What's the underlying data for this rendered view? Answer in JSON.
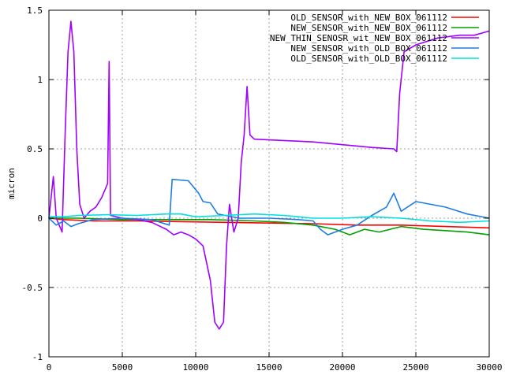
{
  "chart_data": {
    "type": "line",
    "title": "",
    "xlabel": "",
    "ylabel": "micron",
    "xlim": [
      0,
      30000
    ],
    "ylim": [
      -1,
      1.5
    ],
    "grid": true,
    "legend_position": "top-right",
    "x_ticks": [
      "0",
      "5000",
      "10000",
      "15000",
      "20000",
      "25000",
      "30000"
    ],
    "y_ticks": [
      "-1",
      "-0.5",
      "0",
      "0.5",
      "1",
      "1.5"
    ],
    "series": [
      {
        "name": "OLD_SENSOR_with_NEW_BOX_061112",
        "color": "#ff0000",
        "points": [
          [
            0,
            0.0
          ],
          [
            1000,
            -0.01
          ],
          [
            3000,
            -0.02
          ],
          [
            6000,
            -0.02
          ],
          [
            9000,
            -0.025
          ],
          [
            12000,
            -0.03
          ],
          [
            15000,
            -0.035
          ],
          [
            18000,
            -0.04
          ],
          [
            21000,
            -0.05
          ],
          [
            24000,
            -0.05
          ],
          [
            27000,
            -0.06
          ],
          [
            30000,
            -0.07
          ]
        ]
      },
      {
        "name": "NEW_SENSOR_with_NEW_BOX_061112",
        "color": "#00a000",
        "points": [
          [
            0,
            0.0
          ],
          [
            2000,
            0.0
          ],
          [
            5000,
            -0.01
          ],
          [
            8000,
            -0.01
          ],
          [
            11000,
            -0.01
          ],
          [
            14000,
            -0.02
          ],
          [
            16000,
            -0.03
          ],
          [
            18000,
            -0.05
          ],
          [
            19500,
            -0.08
          ],
          [
            20500,
            -0.12
          ],
          [
            21500,
            -0.08
          ],
          [
            22500,
            -0.1
          ],
          [
            24000,
            -0.06
          ],
          [
            25500,
            -0.08
          ],
          [
            27000,
            -0.09
          ],
          [
            28500,
            -0.1
          ],
          [
            30000,
            -0.12
          ]
        ]
      },
      {
        "name": "NEW_THIN_SENOSR_wit_NEW_BOX_061112",
        "color": "#a000ff",
        "points": [
          [
            0,
            0.0
          ],
          [
            300,
            0.3
          ],
          [
            500,
            0.0
          ],
          [
            900,
            -0.1
          ],
          [
            1100,
            0.6
          ],
          [
            1300,
            1.2
          ],
          [
            1500,
            1.42
          ],
          [
            1700,
            1.2
          ],
          [
            1900,
            0.5
          ],
          [
            2100,
            0.1
          ],
          [
            2400,
            0.0
          ],
          [
            2800,
            0.05
          ],
          [
            3200,
            0.08
          ],
          [
            3600,
            0.15
          ],
          [
            4000,
            0.25
          ],
          [
            4100,
            1.13
          ],
          [
            4200,
            0.02
          ],
          [
            5000,
            0.0
          ],
          [
            6000,
            -0.01
          ],
          [
            7000,
            -0.03
          ],
          [
            8000,
            -0.08
          ],
          [
            8500,
            -0.12
          ],
          [
            9000,
            -0.1
          ],
          [
            9500,
            -0.12
          ],
          [
            10000,
            -0.15
          ],
          [
            10500,
            -0.2
          ],
          [
            11000,
            -0.45
          ],
          [
            11300,
            -0.75
          ],
          [
            11600,
            -0.8
          ],
          [
            11900,
            -0.75
          ],
          [
            12100,
            -0.2
          ],
          [
            12300,
            0.1
          ],
          [
            12600,
            -0.1
          ],
          [
            12900,
            0.0
          ],
          [
            13100,
            0.4
          ],
          [
            13300,
            0.6
          ],
          [
            13500,
            0.95
          ],
          [
            13700,
            0.6
          ],
          [
            14000,
            0.57
          ],
          [
            16000,
            0.56
          ],
          [
            18000,
            0.55
          ],
          [
            20000,
            0.53
          ],
          [
            22000,
            0.51
          ],
          [
            23500,
            0.5
          ],
          [
            23700,
            0.48
          ],
          [
            23900,
            0.9
          ],
          [
            24200,
            1.2
          ],
          [
            25000,
            1.25
          ],
          [
            26500,
            1.3
          ],
          [
            28000,
            1.32
          ],
          [
            29000,
            1.32
          ],
          [
            30000,
            1.35
          ]
        ]
      },
      {
        "name": "NEW_SENSOR_with_OLD_BOX_061112",
        "color": "#1e7ee0",
        "points": [
          [
            0,
            0.0
          ],
          [
            500,
            -0.05
          ],
          [
            1000,
            -0.02
          ],
          [
            1500,
            -0.06
          ],
          [
            2000,
            -0.04
          ],
          [
            3000,
            -0.01
          ],
          [
            5000,
            0.0
          ],
          [
            7000,
            -0.01
          ],
          [
            8200,
            -0.05
          ],
          [
            8400,
            0.28
          ],
          [
            9500,
            0.27
          ],
          [
            10200,
            0.18
          ],
          [
            10500,
            0.12
          ],
          [
            11000,
            0.11
          ],
          [
            11500,
            0.03
          ],
          [
            12000,
            0.02
          ],
          [
            13000,
            0.0
          ],
          [
            15000,
            0.0
          ],
          [
            17000,
            -0.01
          ],
          [
            18000,
            -0.02
          ],
          [
            18500,
            -0.08
          ],
          [
            19000,
            -0.12
          ],
          [
            20000,
            -0.08
          ],
          [
            21000,
            -0.05
          ],
          [
            22000,
            0.02
          ],
          [
            23000,
            0.08
          ],
          [
            23500,
            0.18
          ],
          [
            24000,
            0.05
          ],
          [
            25000,
            0.12
          ],
          [
            27000,
            0.08
          ],
          [
            28500,
            0.03
          ],
          [
            30000,
            0.0
          ]
        ]
      },
      {
        "name": "OLD_SENSOR_with_OLD_BOX_061112",
        "color": "#00e0e0",
        "points": [
          [
            0,
            0.01
          ],
          [
            1000,
            0.01
          ],
          [
            2000,
            0.02
          ],
          [
            4000,
            0.025
          ],
          [
            6000,
            0.02
          ],
          [
            8000,
            0.03
          ],
          [
            9000,
            0.03
          ],
          [
            10000,
            0.01
          ],
          [
            12000,
            0.02
          ],
          [
            14000,
            0.03
          ],
          [
            16000,
            0.02
          ],
          [
            18000,
            0.0
          ],
          [
            20000,
            0.0
          ],
          [
            22000,
            0.01
          ],
          [
            24000,
            0.0
          ],
          [
            26000,
            -0.02
          ],
          [
            28000,
            -0.03
          ],
          [
            30000,
            -0.02
          ]
        ]
      }
    ]
  }
}
